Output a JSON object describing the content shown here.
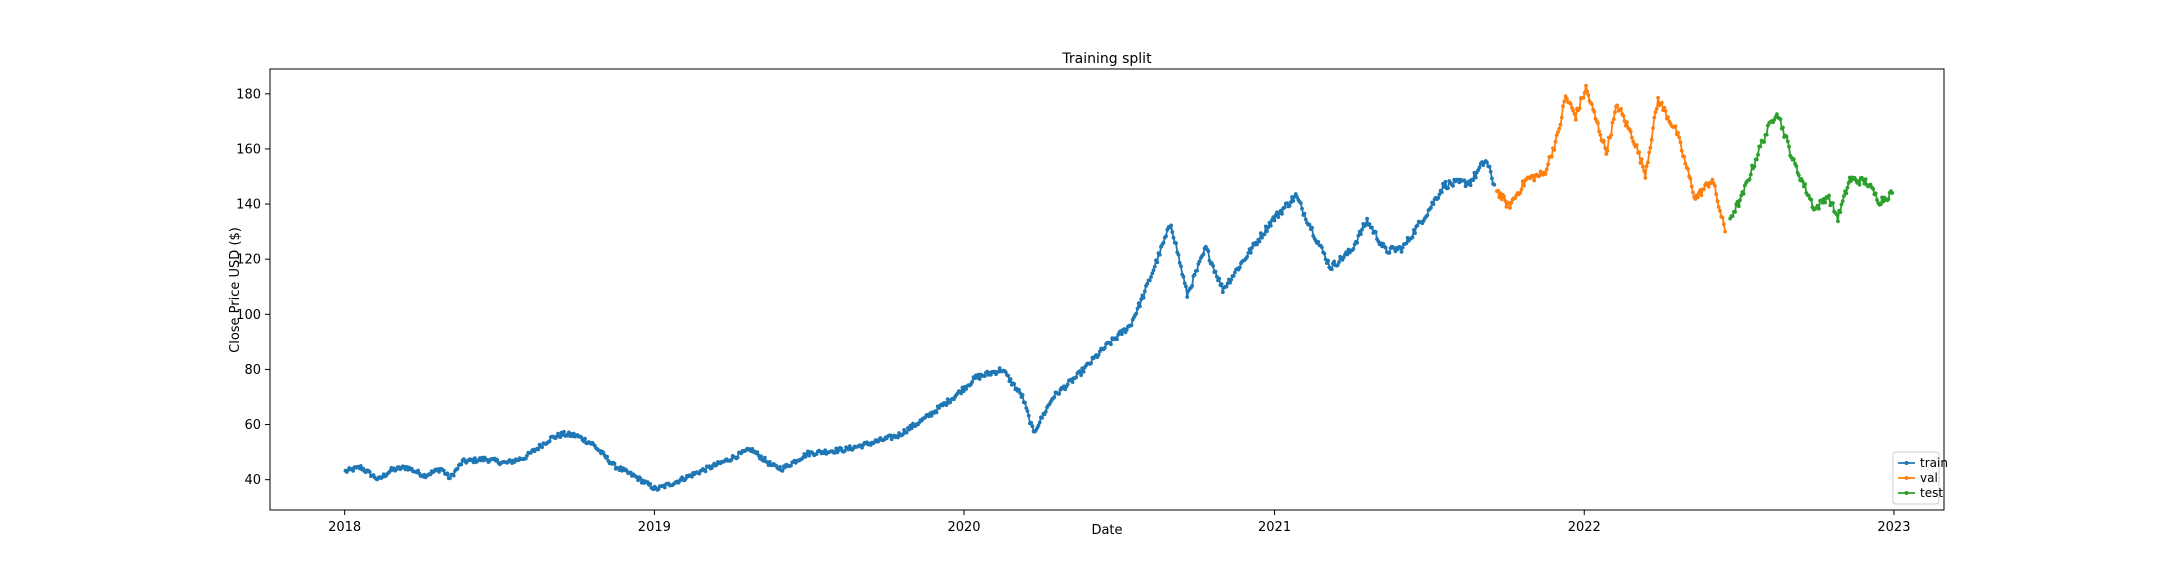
{
  "chart_data": {
    "type": "line",
    "title": "Training split",
    "xlabel": "Date",
    "ylabel": "Close Price USD ($)",
    "x_axis_type": "date",
    "xlim": [
      "2017-10-05",
      "2023-03-01"
    ],
    "ylim": [
      29,
      189
    ],
    "x_ticks": [
      "2018",
      "2019",
      "2020",
      "2021",
      "2022",
      "2023"
    ],
    "y_ticks": [
      40,
      60,
      80,
      100,
      120,
      140,
      160,
      180
    ],
    "grid": false,
    "legend_position": "lower-right",
    "marker": "dot",
    "series": [
      {
        "name": "train",
        "color": "#1f77b4",
        "points": [
          [
            "2018-01-02",
            43
          ],
          [
            "2018-01-20",
            44.5
          ],
          [
            "2018-02-10",
            40
          ],
          [
            "2018-02-25",
            43.5
          ],
          [
            "2018-03-15",
            44.5
          ],
          [
            "2018-04-05",
            41.5
          ],
          [
            "2018-04-25",
            44
          ],
          [
            "2018-05-05",
            40.5
          ],
          [
            "2018-05-20",
            46.5
          ],
          [
            "2018-06-15",
            47.5
          ],
          [
            "2018-07-10",
            46
          ],
          [
            "2018-08-01",
            48
          ],
          [
            "2018-09-01",
            55
          ],
          [
            "2018-09-15",
            56.5
          ],
          [
            "2018-10-01",
            56
          ],
          [
            "2018-10-20",
            53
          ],
          [
            "2018-11-15",
            45
          ],
          [
            "2018-12-10",
            41
          ],
          [
            "2019-01-03",
            36.5
          ],
          [
            "2019-01-25",
            39
          ],
          [
            "2019-02-20",
            42.5
          ],
          [
            "2019-03-20",
            46
          ],
          [
            "2019-04-25",
            51
          ],
          [
            "2019-05-20",
            45
          ],
          [
            "2019-06-01",
            44
          ],
          [
            "2019-07-01",
            49.5
          ],
          [
            "2019-08-15",
            51
          ],
          [
            "2019-09-10",
            53
          ],
          [
            "2019-10-15",
            56
          ],
          [
            "2019-11-15",
            62
          ],
          [
            "2019-12-20",
            70
          ],
          [
            "2020-01-15",
            77
          ],
          [
            "2020-02-15",
            80
          ],
          [
            "2020-03-10",
            70
          ],
          [
            "2020-03-23",
            57
          ],
          [
            "2020-04-15",
            70
          ],
          [
            "2020-05-15",
            78
          ],
          [
            "2020-06-15",
            88
          ],
          [
            "2020-07-15",
            96
          ],
          [
            "2020-08-01",
            108
          ],
          [
            "2020-09-01",
            133
          ],
          [
            "2020-09-20",
            107
          ],
          [
            "2020-10-12",
            124
          ],
          [
            "2020-11-01",
            109
          ],
          [
            "2020-12-01",
            122
          ],
          [
            "2020-12-29",
            134
          ],
          [
            "2021-01-26",
            143
          ],
          [
            "2021-02-20",
            127
          ],
          [
            "2021-03-08",
            117
          ],
          [
            "2021-04-01",
            123
          ],
          [
            "2021-04-20",
            134
          ],
          [
            "2021-05-12",
            123
          ],
          [
            "2021-06-01",
            124
          ],
          [
            "2021-06-30",
            137
          ],
          [
            "2021-07-20",
            147
          ],
          [
            "2021-08-20",
            148
          ],
          [
            "2021-09-07",
            156
          ],
          [
            "2021-09-17",
            147
          ]
        ]
      },
      {
        "name": "val",
        "color": "#ff7f0e",
        "points": [
          [
            "2021-09-20",
            145
          ],
          [
            "2021-10-04",
            139
          ],
          [
            "2021-10-25",
            149
          ],
          [
            "2021-11-15",
            151
          ],
          [
            "2021-12-01",
            165
          ],
          [
            "2021-12-10",
            179
          ],
          [
            "2021-12-22",
            172
          ],
          [
            "2022-01-03",
            182
          ],
          [
            "2022-01-27",
            159
          ],
          [
            "2022-02-09",
            176
          ],
          [
            "2022-03-01",
            163
          ],
          [
            "2022-03-14",
            151
          ],
          [
            "2022-03-29",
            178
          ],
          [
            "2022-04-20",
            166
          ],
          [
            "2022-05-12",
            142
          ],
          [
            "2022-06-01",
            149
          ],
          [
            "2022-06-16",
            130
          ]
        ]
      },
      {
        "name": "test",
        "color": "#2ca02c",
        "points": [
          [
            "2022-06-22",
            135
          ],
          [
            "2022-07-05",
            142
          ],
          [
            "2022-07-29",
            162
          ],
          [
            "2022-08-16",
            174
          ],
          [
            "2022-09-05",
            155
          ],
          [
            "2022-09-30",
            138
          ],
          [
            "2022-10-15",
            143
          ],
          [
            "2022-10-27",
            135
          ],
          [
            "2022-11-10",
            149
          ],
          [
            "2022-11-30",
            148
          ],
          [
            "2022-12-15",
            141
          ],
          [
            "2022-12-30",
            144
          ]
        ]
      }
    ]
  }
}
